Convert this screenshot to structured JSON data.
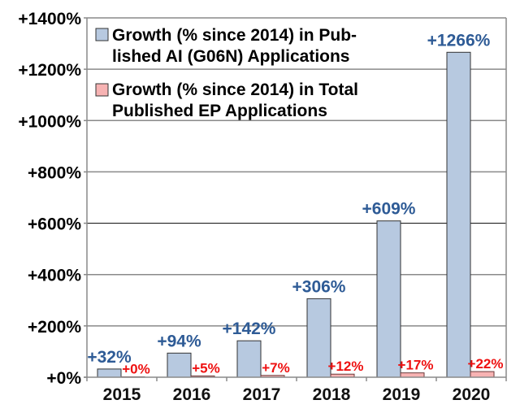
{
  "chart_data": {
    "type": "bar",
    "title": "",
    "xlabel": "",
    "ylabel": "",
    "ylim": [
      0,
      1400
    ],
    "yticks": [
      0,
      200,
      400,
      600,
      800,
      1000,
      1200,
      1400
    ],
    "ytick_labels": [
      "+0%",
      "+200%",
      "+400%",
      "+600%",
      "+800%",
      "+1000%",
      "+1200%",
      "+1400%"
    ],
    "grid": true,
    "legend_position": "top-left",
    "categories": [
      "2015",
      "2016",
      "2017",
      "2018",
      "2019",
      "2020"
    ],
    "series": [
      {
        "name": "Growth (% since 2014) in Published AI (G06N) Applications",
        "legend_lines": [
          "Growth (% since 2014) in Pub-",
          "lished AI (G06N) Applications"
        ],
        "color": "#b7c9e0",
        "label_color": "#2e5b96",
        "values": [
          32,
          94,
          142,
          306,
          609,
          1266
        ],
        "labels": [
          "+32%",
          "+94%",
          "+142%",
          "+306%",
          "+609%",
          "+1266%"
        ]
      },
      {
        "name": "Growth (% since 2014) in Total Published EP Applications",
        "legend_lines": [
          "Growth (% since 2014) in Total",
          "Published EP Applications"
        ],
        "color": "#f7b3b3",
        "label_color": "#ee1111",
        "values": [
          0,
          5,
          7,
          12,
          17,
          22
        ],
        "labels": [
          "+0%",
          "+5%",
          "+7%",
          "+12%",
          "+17%",
          "+22%"
        ]
      }
    ]
  }
}
